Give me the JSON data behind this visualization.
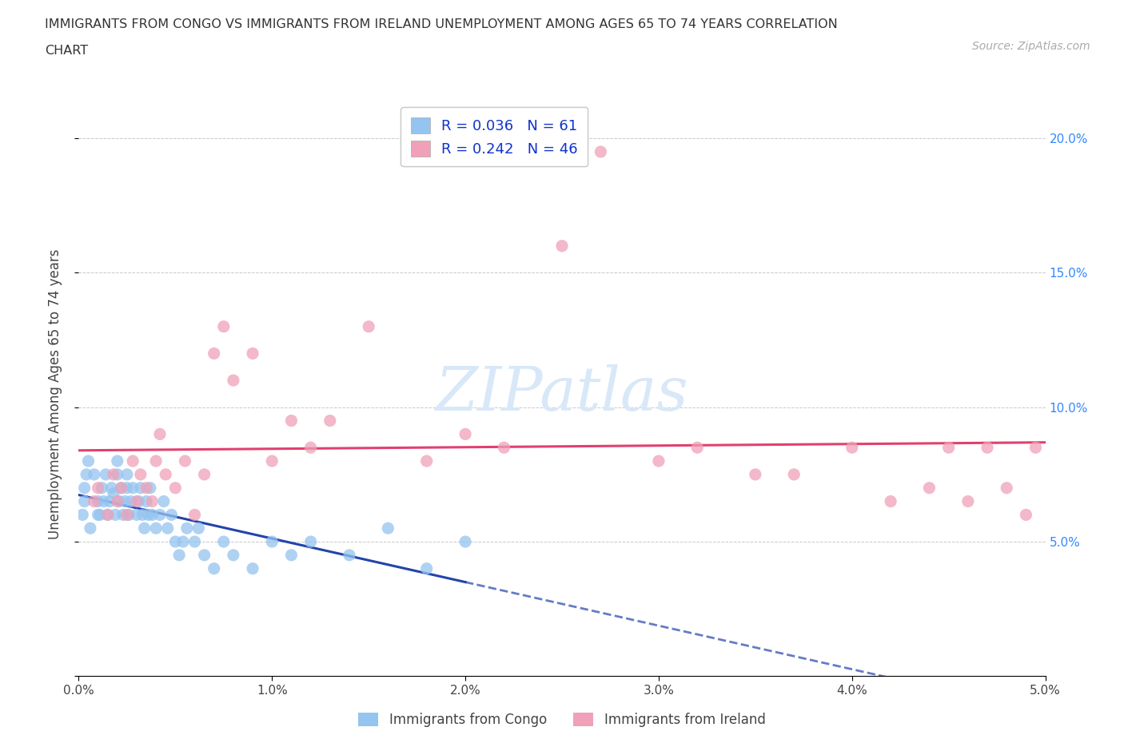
{
  "title_line1": "IMMIGRANTS FROM CONGO VS IMMIGRANTS FROM IRELAND UNEMPLOYMENT AMONG AGES 65 TO 74 YEARS CORRELATION",
  "title_line2": "CHART",
  "source": "Source: ZipAtlas.com",
  "ylabel": "Unemployment Among Ages 65 to 74 years",
  "xlim": [
    0.0,
    0.05
  ],
  "ylim": [
    0.0,
    0.21
  ],
  "xticks": [
    0.0,
    0.01,
    0.02,
    0.03,
    0.04,
    0.05
  ],
  "xtick_labels": [
    "0.0%",
    "1.0%",
    "2.0%",
    "3.0%",
    "4.0%",
    "5.0%"
  ],
  "yticks": [
    0.0,
    0.05,
    0.1,
    0.15,
    0.2
  ],
  "ytick_labels_left": [
    "",
    "",
    "",
    "",
    ""
  ],
  "ytick_labels_right": [
    "",
    "5.0%",
    "10.0%",
    "15.0%",
    "20.0%"
  ],
  "legend_label1": "R = 0.036   N = 61",
  "legend_label2": "R = 0.242   N = 46",
  "color_congo": "#94c4f0",
  "color_ireland": "#f0a0b8",
  "trendline_congo_color": "#2244aa",
  "trendline_ireland_color": "#e04070",
  "watermark_text": "ZIPatlas",
  "bottom_label1": "Immigrants from Congo",
  "bottom_label2": "Immigrants from Ireland",
  "congo_x": [
    0.0002,
    0.0003,
    0.0003,
    0.0004,
    0.0005,
    0.0006,
    0.0008,
    0.001,
    0.001,
    0.0011,
    0.0012,
    0.0013,
    0.0014,
    0.0015,
    0.0016,
    0.0017,
    0.0018,
    0.0019,
    0.002,
    0.002,
    0.0021,
    0.0022,
    0.0023,
    0.0024,
    0.0025,
    0.0025,
    0.0026,
    0.0027,
    0.0028,
    0.003,
    0.0031,
    0.0032,
    0.0033,
    0.0034,
    0.0035,
    0.0036,
    0.0037,
    0.0038,
    0.004,
    0.0042,
    0.0044,
    0.0046,
    0.0048,
    0.005,
    0.0052,
    0.0054,
    0.0056,
    0.006,
    0.0062,
    0.0065,
    0.007,
    0.0075,
    0.008,
    0.009,
    0.01,
    0.011,
    0.012,
    0.014,
    0.016,
    0.018,
    0.02
  ],
  "congo_y": [
    0.06,
    0.065,
    0.07,
    0.075,
    0.08,
    0.055,
    0.075,
    0.06,
    0.065,
    0.06,
    0.07,
    0.065,
    0.075,
    0.06,
    0.065,
    0.07,
    0.068,
    0.06,
    0.075,
    0.08,
    0.065,
    0.07,
    0.06,
    0.065,
    0.07,
    0.075,
    0.06,
    0.065,
    0.07,
    0.06,
    0.065,
    0.07,
    0.06,
    0.055,
    0.065,
    0.06,
    0.07,
    0.06,
    0.055,
    0.06,
    0.065,
    0.055,
    0.06,
    0.05,
    0.045,
    0.05,
    0.055,
    0.05,
    0.055,
    0.045,
    0.04,
    0.05,
    0.045,
    0.04,
    0.05,
    0.045,
    0.05,
    0.045,
    0.055,
    0.04,
    0.05
  ],
  "ireland_x": [
    0.0008,
    0.001,
    0.0015,
    0.0018,
    0.002,
    0.0022,
    0.0025,
    0.0028,
    0.003,
    0.0032,
    0.0035,
    0.0038,
    0.004,
    0.0042,
    0.0045,
    0.005,
    0.0055,
    0.006,
    0.0065,
    0.007,
    0.0075,
    0.008,
    0.009,
    0.01,
    0.011,
    0.012,
    0.013,
    0.015,
    0.018,
    0.02,
    0.022,
    0.025,
    0.027,
    0.03,
    0.032,
    0.035,
    0.037,
    0.04,
    0.042,
    0.044,
    0.045,
    0.046,
    0.047,
    0.048,
    0.049,
    0.0495
  ],
  "ireland_y": [
    0.065,
    0.07,
    0.06,
    0.075,
    0.065,
    0.07,
    0.06,
    0.08,
    0.065,
    0.075,
    0.07,
    0.065,
    0.08,
    0.09,
    0.075,
    0.07,
    0.08,
    0.06,
    0.075,
    0.12,
    0.13,
    0.11,
    0.12,
    0.08,
    0.095,
    0.085,
    0.095,
    0.13,
    0.08,
    0.09,
    0.085,
    0.16,
    0.195,
    0.08,
    0.085,
    0.075,
    0.075,
    0.085,
    0.065,
    0.07,
    0.085,
    0.065,
    0.085,
    0.07,
    0.06,
    0.085
  ]
}
